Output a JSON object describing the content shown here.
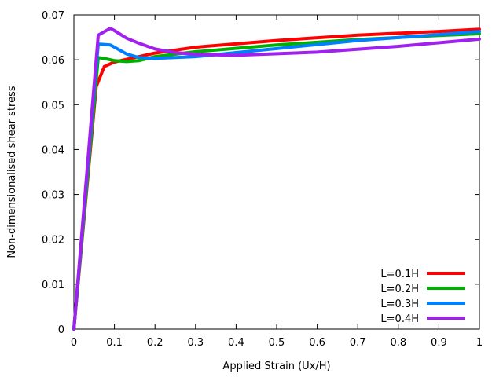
{
  "chart_data": {
    "type": "line",
    "title": "",
    "xlabel": "Applied Strain (Ux/H)",
    "ylabel": "Non-dimensionalised shear stress",
    "xlim": [
      0,
      1
    ],
    "ylim": [
      0,
      0.07
    ],
    "xticks": [
      0,
      0.1,
      0.2,
      0.3,
      0.4,
      0.5,
      0.6,
      0.7,
      0.8,
      0.9,
      1
    ],
    "xtick_labels": [
      "0",
      "0.1",
      "0.2",
      "0.3",
      "0.4",
      "0.5",
      "0.6",
      "0.7",
      "0.8",
      "0.9",
      "1"
    ],
    "yticks": [
      0,
      0.01,
      0.02,
      0.03,
      0.04,
      0.05,
      0.06,
      0.07
    ],
    "ytick_labels": [
      "0",
      "0.01",
      "0.02",
      "0.03",
      "0.04",
      "0.05",
      "0.06",
      "0.07"
    ],
    "grid": false,
    "legend_position": "bottom-right",
    "series": [
      {
        "name": "L=0.1H",
        "color": "#ff0000",
        "x": [
          0,
          0.055,
          0.075,
          0.1,
          0.15,
          0.2,
          0.3,
          0.5,
          0.7,
          0.9,
          1.0
        ],
        "y": [
          0,
          0.054,
          0.0585,
          0.0595,
          0.0605,
          0.0615,
          0.0628,
          0.0643,
          0.0655,
          0.0663,
          0.0668
        ]
      },
      {
        "name": "L=0.2H",
        "color": "#00b000",
        "x": [
          0,
          0.06,
          0.08,
          0.1,
          0.13,
          0.16,
          0.2,
          0.3,
          0.5,
          0.7,
          0.9,
          1.0
        ],
        "y": [
          0,
          0.0605,
          0.0602,
          0.0598,
          0.0596,
          0.0598,
          0.0607,
          0.0618,
          0.0633,
          0.0645,
          0.0654,
          0.0658
        ]
      },
      {
        "name": "L=0.3H",
        "color": "#0080ff",
        "x": [
          0,
          0.06,
          0.09,
          0.11,
          0.13,
          0.16,
          0.2,
          0.3,
          0.5,
          0.7,
          0.9,
          1.0
        ],
        "y": [
          0,
          0.0635,
          0.0633,
          0.0623,
          0.0613,
          0.0605,
          0.0603,
          0.0607,
          0.0625,
          0.0643,
          0.0656,
          0.0663
        ]
      },
      {
        "name": "L=0.4H",
        "color": "#a020f0",
        "x": [
          0,
          0.06,
          0.09,
          0.1,
          0.13,
          0.16,
          0.2,
          0.25,
          0.3,
          0.4,
          0.6,
          0.8,
          1.0
        ],
        "y": [
          0,
          0.0655,
          0.067,
          0.0665,
          0.0648,
          0.0637,
          0.0624,
          0.0616,
          0.0612,
          0.061,
          0.0617,
          0.063,
          0.0646
        ]
      }
    ]
  }
}
